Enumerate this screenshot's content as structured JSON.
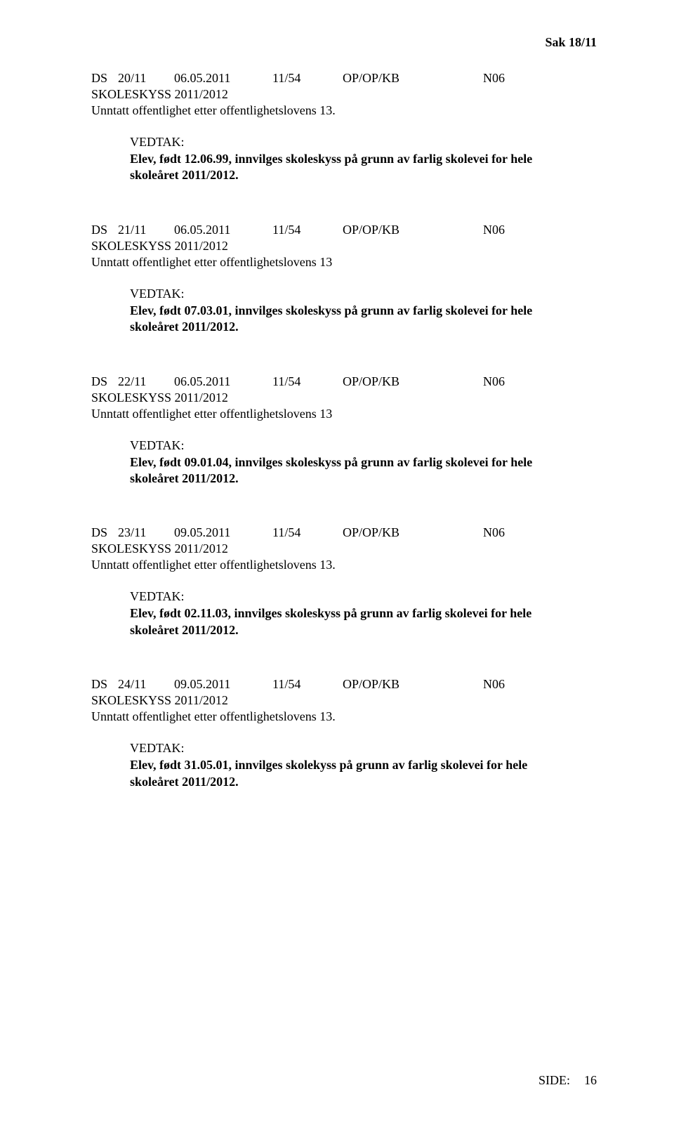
{
  "page_header": "Sak  18/11",
  "footer_label": "SIDE:",
  "footer_page": "16",
  "entries": [
    {
      "ds": "DS",
      "num": "20/11",
      "date": "06.05.2011",
      "ref": "11/54",
      "code": "OP/OP/KB",
      "n": "N06",
      "title": "SKOLESKYSS 2011/2012",
      "exempt": "Unntatt offentlighet etter offentlighetslovens 13.",
      "vedtak": "VEDTAK:",
      "body1": "Elev, født 12.06.99, innvilges skoleskyss på grunn av farlig skolevei for hele",
      "body2": "skoleåret 2011/2012."
    },
    {
      "ds": "DS",
      "num": "21/11",
      "date": "06.05.2011",
      "ref": "11/54",
      "code": "OP/OP/KB",
      "n": "N06",
      "title": "SKOLESKYSS 2011/2012",
      "exempt": "Unntatt offentlighet etter offentlighetslovens 13",
      "vedtak": "VEDTAK:",
      "body1": "Elev, født 07.03.01, innvilges skoleskyss på grunn av farlig skolevei for hele",
      "body2": "skoleåret 2011/2012."
    },
    {
      "ds": "DS",
      "num": "22/11",
      "date": "06.05.2011",
      "ref": "11/54",
      "code": "OP/OP/KB",
      "n": "N06",
      "title": "SKOLESKYSS 2011/2012",
      "exempt": "Unntatt offentlighet etter offentlighetslovens 13",
      "vedtak": "VEDTAK:",
      "body1": "Elev, født 09.01.04, innvilges skoleskyss på grunn av farlig skolevei for hele",
      "body2": "skoleåret 2011/2012."
    },
    {
      "ds": "DS",
      "num": "23/11",
      "date": "09.05.2011",
      "ref": "11/54",
      "code": "OP/OP/KB",
      "n": "N06",
      "title": "SKOLESKYSS 2011/2012",
      "exempt": "Unntatt offentlighet etter offentlighetslovens 13.",
      "vedtak": "VEDTAK:",
      "body1": "Elev, født 02.11.03, innvilges skoleskyss på grunn av farlig skolevei for hele",
      "body2": "skoleåret 2011/2012."
    },
    {
      "ds": "DS",
      "num": "24/11",
      "date": "09.05.2011",
      "ref": "11/54",
      "code": "OP/OP/KB",
      "n": "N06",
      "title": "SKOLESKYSS 2011/2012",
      "exempt": "Unntatt offentlighet etter offentlighetslovens 13.",
      "vedtak": "VEDTAK:",
      "body1": "Elev, født 31.05.01, innvilges skolekyss på grunn av farlig skolevei for hele",
      "body2": "skoleåret 2011/2012."
    }
  ]
}
